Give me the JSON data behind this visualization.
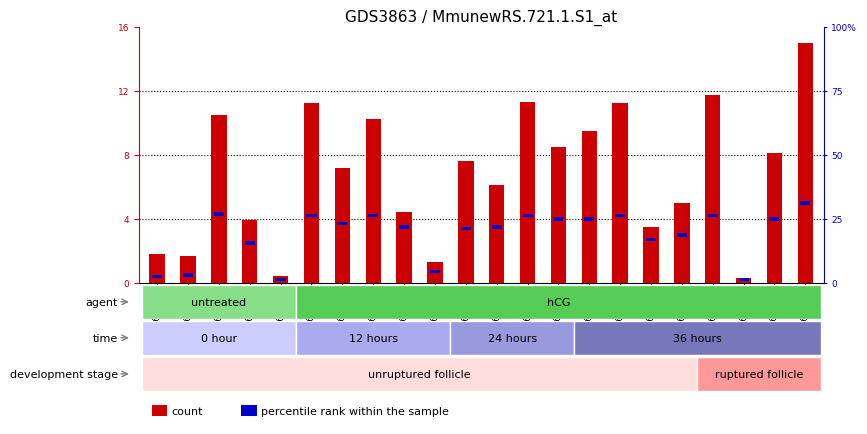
{
  "title": "GDS3863 / MmunewRS.721.1.S1_at",
  "samples": [
    "GSM563219",
    "GSM563220",
    "GSM563221",
    "GSM563222",
    "GSM563223",
    "GSM563224",
    "GSM563225",
    "GSM563226",
    "GSM563227",
    "GSM563228",
    "GSM563229",
    "GSM563230",
    "GSM563231",
    "GSM563232",
    "GSM563233",
    "GSM563234",
    "GSM563235",
    "GSM563236",
    "GSM563237",
    "GSM563238",
    "GSM563239",
    "GSM563240"
  ],
  "counts": [
    1.8,
    1.7,
    10.5,
    3.9,
    0.4,
    11.2,
    7.2,
    10.2,
    4.4,
    1.3,
    7.6,
    6.1,
    11.3,
    8.5,
    9.5,
    11.2,
    3.5,
    5.0,
    11.7,
    0.3,
    8.1,
    15.0
  ],
  "percentiles": [
    0.4,
    0.5,
    4.3,
    2.5,
    0.2,
    4.2,
    3.7,
    4.2,
    3.5,
    0.7,
    3.4,
    3.5,
    4.2,
    4.0,
    4.0,
    4.2,
    2.7,
    3.0,
    4.2,
    0.2,
    4.0,
    5.0
  ],
  "ylim_left": [
    0,
    16
  ],
  "ylim_right": [
    0,
    100
  ],
  "yticks_left": [
    0,
    4,
    8,
    12,
    16
  ],
  "yticks_right": [
    0,
    25,
    50,
    75,
    100
  ],
  "ytick_labels_right": [
    "0",
    "25",
    "50",
    "75",
    "100%"
  ],
  "bar_color": "#cc0000",
  "percentile_color": "#0000cc",
  "bar_width": 0.5,
  "agent_groups": [
    {
      "label": "untreated",
      "start": 0,
      "end": 5,
      "color": "#88dd88"
    },
    {
      "label": "hCG",
      "start": 5,
      "end": 22,
      "color": "#55cc55"
    }
  ],
  "time_groups": [
    {
      "label": "0 hour",
      "start": 0,
      "end": 5,
      "color": "#ccccff"
    },
    {
      "label": "12 hours",
      "start": 5,
      "end": 10,
      "color": "#aaaaee"
    },
    {
      "label": "24 hours",
      "start": 10,
      "end": 14,
      "color": "#9999dd"
    },
    {
      "label": "36 hours",
      "start": 14,
      "end": 22,
      "color": "#7777bb"
    }
  ],
  "dev_groups": [
    {
      "label": "unruptured follicle",
      "start": 0,
      "end": 18,
      "color": "#ffdddd"
    },
    {
      "label": "ruptured follicle",
      "start": 18,
      "end": 22,
      "color": "#ff9999"
    }
  ],
  "legend_items": [
    {
      "label": "count",
      "color": "#cc0000"
    },
    {
      "label": "percentile rank within the sample",
      "color": "#0000cc"
    }
  ],
  "background_color": "#ffffff",
  "plot_bg_color": "#ffffff",
  "axis_color_left": "#cc0000",
  "axis_color_right": "#0000cc",
  "title_fontsize": 11,
  "tick_fontsize": 6.5,
  "label_fontsize": 8,
  "annotation_fontsize": 8
}
